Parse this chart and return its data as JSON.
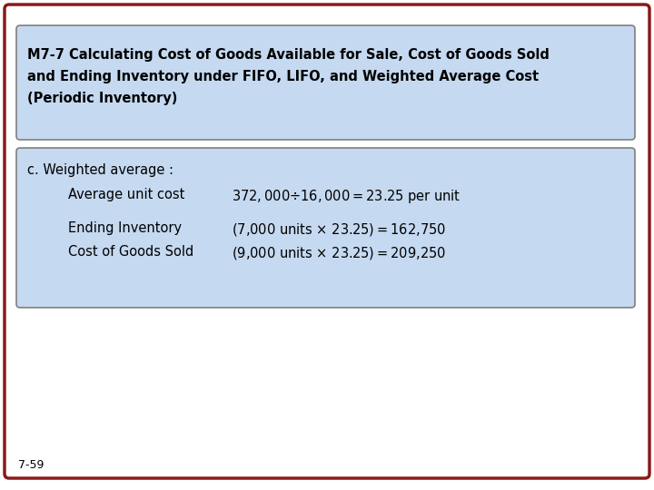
{
  "bg_color": "#ffffff",
  "outer_border_color": "#8B1A1A",
  "title_box_bg": "#c5d9f1",
  "title_box_border": "#7f7f7f",
  "title_text_line1": "M7-7 Calculating Cost of Goods Available for Sale, Cost of Goods Sold",
  "title_text_line2": "and Ending Inventory under FIFO, LIFO, and Weighted Average Cost",
  "title_text_line3": "(Periodic Inventory)",
  "title_fontsize": 10.5,
  "content_box_bg": "#c5d9f1",
  "content_box_border": "#7f7f7f",
  "content_label": "c. Weighted average :",
  "content_label_fontsize": 10.5,
  "row1_left": "Average unit cost",
  "row1_right": "$372,000 ÷ 16,000  =  $23.25 per unit",
  "row2_left": "Ending Inventory",
  "row2_right": "(7,000 units × $23.25)  =  $162,750",
  "row3_left": "Cost of Goods Sold",
  "row3_right": "(9,000 units × $23.25)  =  $209,250",
  "content_fontsize": 10.5,
  "footer_text": "7-59",
  "footer_fontsize": 9,
  "font_family": "DejaVu Sans"
}
